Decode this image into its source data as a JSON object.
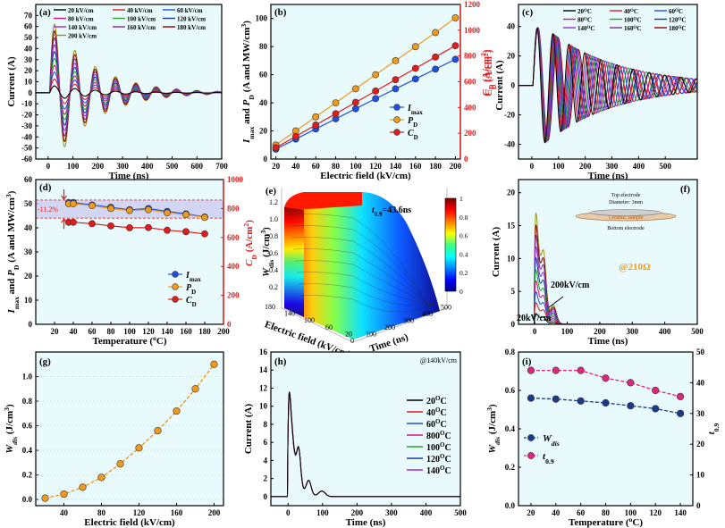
{
  "figure": {
    "panels": [
      {
        "letter": "(a)",
        "chart_data": {
          "type": "line",
          "xlabel": "Time  (ns)",
          "ylabel": "Current (A)",
          "xlim": [
            -50,
            700
          ],
          "ylim": [
            -60,
            80
          ],
          "xticks": [
            0,
            100,
            200,
            300,
            400,
            500,
            600,
            700
          ],
          "yticks": [
            -60,
            -50,
            -40,
            -30,
            -20,
            -10,
            0,
            10,
            20,
            30,
            40,
            50,
            60,
            70
          ],
          "legend_position": "top",
          "waveform": {
            "period_ns": 82,
            "decay_ns": 170,
            "start_ns": 0
          },
          "series": [
            {
              "name": "20 kV/cm",
              "color": "#000000",
              "peak": 7
            },
            {
              "name": "40 kV/cm",
              "color": "#e41a1c",
              "peak": 14
            },
            {
              "name": "60 kV/cm",
              "color": "#1f4fe0",
              "peak": 21
            },
            {
              "name": "80 kV/cm",
              "color": "#d2147c",
              "peak": 28
            },
            {
              "name": "100 kV/cm",
              "color": "#2aa52a",
              "peak": 35
            },
            {
              "name": "120 kV/cm",
              "color": "#1a3a9a",
              "peak": 42
            },
            {
              "name": "140 kV/cm",
              "color": "#9b30d8",
              "peak": 49
            },
            {
              "name": "160 kV/cm",
              "color": "#7a2d8c",
              "peak": 56
            },
            {
              "name": "180 kV/cm",
              "color": "#8b0000",
              "peak": 63
            },
            {
              "name": "200 kV/cm",
              "color": "#9a9a1a",
              "peak": 70
            }
          ]
        }
      },
      {
        "letter": "(b)",
        "chart_data": {
          "type": "line",
          "xlabel": "Electric field (kV/cm)",
          "ylabel_main": "I",
          "ylabel_sub": "max",
          "ylabel_mid": " and ",
          "ylabel_p": "P",
          "ylabel_psub": "D",
          "ylabel_tail": " (A and MW/cm",
          "ylabel_sup": "3",
          "ylabel_close": ")",
          "y2label": "C",
          "y2label_sub": "D",
          "y2label_tail": " (A/cm",
          "y2label_sup": "2",
          "y2label_close": ")",
          "xlim": [
            15,
            205
          ],
          "ylim": [
            0,
            110
          ],
          "y2lim": [
            0,
            1200
          ],
          "xticks": [
            20,
            40,
            60,
            80,
            100,
            120,
            140,
            160,
            180,
            200
          ],
          "yticks": [
            0,
            20,
            40,
            60,
            80,
            100
          ],
          "y2ticks": [
            0,
            200,
            400,
            600,
            800,
            1000,
            1200
          ],
          "x": [
            20,
            40,
            60,
            80,
            100,
            120,
            140,
            160,
            180,
            200
          ],
          "legend_position": "center-right",
          "series": [
            {
              "name": "I",
              "name_sub": "max",
              "color": "#1f4fe0",
              "axis": "left",
              "values": [
                7,
                14.2,
                21.4,
                28.6,
                35.8,
                43,
                50,
                57,
                64,
                71
              ]
            },
            {
              "name": "P",
              "name_sub": "D",
              "color": "#f29a1b",
              "axis": "left",
              "values": [
                10,
                20,
                30,
                40,
                50,
                60,
                70,
                80,
                90,
                100.5
              ]
            },
            {
              "name": "C",
              "name_sub": "D",
              "color": "#e41a1c",
              "axis": "right",
              "values": [
                88,
                176,
                264,
                352,
                440,
                528,
                616,
                704,
                792,
                880
              ]
            }
          ]
        }
      },
      {
        "letter": "(c)",
        "chart_data": {
          "type": "line",
          "xlabel": "Time (ns)",
          "ylabel_c": "C",
          "ylabel_csub": "D",
          "ylabel_ctail": " (A/cm",
          "ylabel_csup": "2",
          "ylabel_cclose": ")",
          "ylabel_over": "Current (A)",
          "xlim": [
            -50,
            620
          ],
          "ylim": [
            -50,
            55
          ],
          "xticks": [
            0,
            100,
            200,
            300,
            400,
            500
          ],
          "yticks": [
            -40,
            -20,
            0,
            20,
            40
          ],
          "legend_position": "top",
          "waveform": {
            "peak": 47,
            "decay_ns": 260,
            "start_ns": 0
          },
          "series": [
            {
              "name": "20",
              "color": "#000000",
              "period_ns": 60
            },
            {
              "name": "40",
              "color": "#e41a1c",
              "period_ns": 62
            },
            {
              "name": "60",
              "color": "#1f4fe0",
              "period_ns": 64
            },
            {
              "name": "80",
              "color": "#d2147c",
              "period_ns": 66
            },
            {
              "name": "100",
              "color": "#2aa52a",
              "period_ns": 68
            },
            {
              "name": "120",
              "color": "#1a3a9a",
              "period_ns": 70
            },
            {
              "name": "140",
              "color": "#9b30d8",
              "period_ns": 72
            },
            {
              "name": "160",
              "color": "#7a2d8c",
              "period_ns": 74
            },
            {
              "name": "180",
              "color": "#8b0000",
              "period_ns": 76
            }
          ],
          "legend_unit_sup": "O",
          "legend_unit": "C"
        }
      },
      {
        "letter": "(d)",
        "chart_data": {
          "type": "line",
          "xlabel_main": "Temperature (",
          "xlabel_sup": "o",
          "xlabel_tail": "C)",
          "ylabel_main": "I",
          "ylabel_sub": "max",
          "ylabel_mid": " and ",
          "ylabel_p": "P",
          "ylabel_psub": "D",
          "ylabel_tail": " (A and MW/cm",
          "ylabel_sup": "3",
          "ylabel_close": ")",
          "y2label": "C",
          "y2label_sub": "D",
          "y2label_tail": " (A/cm",
          "y2label_sup": "2",
          "y2label_close": ")",
          "xlim": [
            0,
            200
          ],
          "ylim": [
            0,
            60
          ],
          "y2lim": [
            0,
            1000
          ],
          "xticks": [
            20,
            40,
            60,
            80,
            100,
            120,
            140,
            160,
            180,
            200
          ],
          "yticks": [
            0,
            10,
            20,
            30,
            40,
            50,
            60
          ],
          "y2ticks": [
            0,
            200,
            400,
            600,
            800,
            1000
          ],
          "x": [
            35,
            40,
            60,
            80,
            100,
            120,
            140,
            160,
            180
          ],
          "band": [
            44,
            51.5
          ],
          "annotation": "-11.2%",
          "legend_position": "bottom-right",
          "series": [
            {
              "name": "I",
              "name_sub": "max",
              "color": "#1f4fe0",
              "axis": "left",
              "values": [
                50.5,
                50.5,
                49.5,
                48.5,
                47.5,
                48,
                46.8,
                45.8,
                44.5
              ]
            },
            {
              "name": "P",
              "name_sub": "D",
              "color": "#f29a1b",
              "axis": "left",
              "values": [
                50,
                50,
                49.2,
                48,
                47.2,
                47.5,
                46.2,
                45.5,
                44.3
              ]
            },
            {
              "name": "C",
              "name_sub": "D",
              "color": "#e41a1c",
              "axis": "right",
              "values": [
                705,
                705,
                695,
                680,
                667,
                668,
                650,
                640,
                625
              ]
            }
          ]
        }
      },
      {
        "letter": "(e)",
        "chart_data": {
          "type": "area",
          "xlabel": "Time (ns)",
          "ylabel": "Electric field (kV/cm)",
          "zlabel_main": "W",
          "zlabel_sub": "dis",
          "zlabel_tail": " (J/cm",
          "zlabel_sup": "3",
          "zlabel_close": ")",
          "annotation_main": "t",
          "annotation_sub": "0.9",
          "annotation_tail": "=43.6ns",
          "xticks": [
            0,
            100,
            200,
            300,
            400,
            500
          ],
          "yticks": [
            180,
            160,
            140,
            120,
            100,
            80,
            60,
            40,
            20
          ],
          "zticks": [
            0.2,
            0.4,
            0.6,
            0.8,
            1.0,
            1.2
          ],
          "colorbar_ticks": [
            0,
            0.2,
            0.4,
            0.6,
            0.8,
            1
          ],
          "colorbar_labels": [
            "0",
            "0.2",
            "0.4",
            "0.6",
            "0.8",
            "1"
          ]
        }
      },
      {
        "letter": "(f)",
        "chart_data": {
          "type": "line",
          "xlabel": "Time (ns)",
          "ylabel": "Current (A)",
          "xlim": [
            -50,
            500
          ],
          "ylim": [
            0,
            22
          ],
          "xticks": [
            0,
            100,
            200,
            300,
            400,
            500
          ],
          "yticks": [
            0,
            5,
            10,
            15,
            20
          ],
          "annotation_high": "200kV/cm",
          "annotation_low": "20kV/cm",
          "resistance": "@210Ω",
          "inset_top": "Top electrode",
          "inset_diameter": "Diameter:  3mm",
          "inset_sample": "Ceramic sample",
          "inset_bottom": "Bottom electrode",
          "series_peaks": [
            2.0,
            4.0,
            6.0,
            8.0,
            10.0,
            12.2,
            14.3,
            16.4,
            18.3,
            20.5
          ],
          "series_colors": [
            "#000000",
            "#e41a1c",
            "#1f4fe0",
            "#d2147c",
            "#2aa52a",
            "#1a3a9a",
            "#9b30d8",
            "#7a2d8c",
            "#8b0000",
            "#9a9a1a"
          ]
        }
      },
      {
        "letter": "(g)",
        "chart_data": {
          "type": "line",
          "xlabel": "Electric field (kV/cm)",
          "ylabel_main": "W",
          "ylabel_sub": "dis",
          "ylabel_tail": " (J/cm",
          "ylabel_sup": "3",
          "ylabel_close": ")",
          "xlim": [
            10,
            210
          ],
          "ylim": [
            -0.05,
            1.2
          ],
          "xticks": [
            40,
            80,
            120,
            160,
            200
          ],
          "yticks": [
            0.0,
            0.2,
            0.4,
            0.6,
            0.8,
            1.0
          ],
          "x": [
            20,
            40,
            60,
            80,
            100,
            120,
            140,
            160,
            180,
            200
          ],
          "series": [
            {
              "color": "#f29a1b",
              "values": [
                0.011,
                0.044,
                0.1,
                0.18,
                0.29,
                0.42,
                0.56,
                0.72,
                0.9,
                1.1
              ]
            }
          ]
        }
      },
      {
        "letter": "(h)",
        "chart_data": {
          "type": "line",
          "xlabel": "Time (ns)",
          "ylabel": "Current (A)",
          "xlim": [
            -50,
            500
          ],
          "ylim": [
            -1,
            16
          ],
          "xticks": [
            0,
            100,
            200,
            300,
            400,
            500
          ],
          "yticks": [
            0,
            2,
            4,
            6,
            8,
            10,
            12,
            14,
            16
          ],
          "condition": "@140kV/cm",
          "legend_position": "right",
          "legend_unit_sup": "O",
          "legend_unit": "C",
          "series": [
            {
              "name": "20",
              "color": "#000000",
              "peak": 14.2
            },
            {
              "name": "40",
              "color": "#e41a1c",
              "peak": 14.1
            },
            {
              "name": "60",
              "color": "#1f4fe0",
              "peak": 14.0
            },
            {
              "name": "800",
              "color": "#d2147c",
              "peak": 13.9
            },
            {
              "name": "100",
              "color": "#2aa52a",
              "peak": 13.8
            },
            {
              "name": "120",
              "color": "#1a3a9a",
              "peak": 13.7
            },
            {
              "name": "140",
              "color": "#9b30d8",
              "peak": 13.6
            }
          ]
        }
      },
      {
        "letter": "(i)",
        "chart_data": {
          "type": "line",
          "xlabel_main": "Temperature (",
          "xlabel_sup": "o",
          "xlabel_tail": "C)",
          "ylabel_main": "W",
          "ylabel_sub": "dis",
          "ylabel_tail": " (J/cm",
          "ylabel_sup": "3",
          "ylabel_close": ")",
          "y2label_main": "t",
          "y2label_sub": "0.9",
          "xlim": [
            10,
            150
          ],
          "ylim": [
            0,
            0.8
          ],
          "y2lim": [
            0,
            50
          ],
          "xticks": [
            20,
            40,
            60,
            80,
            100,
            120,
            140
          ],
          "yticks": [
            0.0,
            0.2,
            0.4,
            0.6,
            0.8
          ],
          "y2ticks": [
            0,
            10,
            20,
            30,
            40,
            50
          ],
          "x": [
            20,
            40,
            60,
            80,
            100,
            120,
            140
          ],
          "legend_position": "center-left",
          "series": [
            {
              "name": "W",
              "name_sub": "dis",
              "color": "#1a3a8a",
              "axis": "left",
              "values": [
                0.56,
                0.555,
                0.545,
                0.535,
                0.52,
                0.505,
                0.48
              ]
            },
            {
              "name": "t",
              "name_sub": "0.9",
              "color": "#e0257e",
              "axis": "right",
              "values": [
                44,
                44,
                44,
                41.5,
                40,
                37.5,
                35.5
              ]
            }
          ]
        }
      }
    ]
  }
}
